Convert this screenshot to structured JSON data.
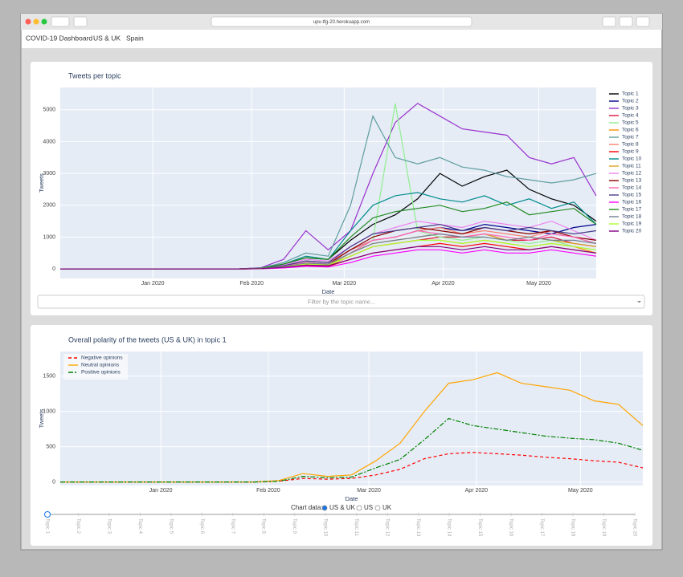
{
  "browser": {
    "url": "upv-tfg-20.herokuapp.com"
  },
  "nav": [
    "COVID-19 Dashboard",
    "US & UK",
    "Spain"
  ],
  "dropdown": {
    "placeholder": "Filter by the topic name..."
  },
  "controls": {
    "label": "Chart data:",
    "options": [
      "US & UK",
      "US",
      "UK"
    ],
    "selected": 0
  },
  "slider": {
    "labels": [
      "Topic 1",
      "Topic 2",
      "Topic 3",
      "Topic 4",
      "Topic 5",
      "Topic 6",
      "Topic 7",
      "Topic 8",
      "Topic 9",
      "Topic 10",
      "Topic 11",
      "Topic 12",
      "Topic 13",
      "Topic 14",
      "Topic 15",
      "Topic 16",
      "Topic 17",
      "Topic 18",
      "Topic 19",
      "Topic 20"
    ],
    "selected": 0
  },
  "chart_data": [
    {
      "type": "line",
      "title": "Tweets per topic",
      "x_label": "Date",
      "y_label": "Tweets",
      "legend": "right",
      "grid": true,
      "x": [
        "2019-12-03",
        "2019-12-10",
        "2019-12-17",
        "2019-12-24",
        "2019-12-31",
        "2020-01-07",
        "2020-01-14",
        "2020-01-21",
        "2020-01-28",
        "2020-02-04",
        "2020-02-11",
        "2020-02-18",
        "2020-02-25",
        "2020-03-03",
        "2020-03-10",
        "2020-03-17",
        "2020-03-24",
        "2020-03-31",
        "2020-04-07",
        "2020-04-14",
        "2020-04-21",
        "2020-04-28",
        "2020-05-05",
        "2020-05-12",
        "2020-05-19"
      ],
      "xlim": [
        "2019-12-03",
        "2020-05-19"
      ],
      "xticks": [
        {
          "value": "2020-01-01",
          "label": "Jan 2020"
        },
        {
          "value": "2020-02-01",
          "label": "Feb 2020"
        },
        {
          "value": "2020-03-01",
          "label": "Mar 2020"
        },
        {
          "value": "2020-04-01",
          "label": "Apr 2020"
        },
        {
          "value": "2020-05-01",
          "label": "May 2020"
        }
      ],
      "ylim": [
        -300,
        5700
      ],
      "yticks": [
        0,
        1000,
        2000,
        3000,
        4000,
        5000
      ],
      "series": [
        {
          "name": "Topic 1",
          "color": "#000000",
          "values": [
            0,
            0,
            0,
            0,
            0,
            0,
            0,
            0,
            0,
            30,
            150,
            350,
            300,
            900,
            1400,
            1700,
            2200,
            3000,
            2600,
            2900,
            3100,
            2500,
            2200,
            2000,
            1500
          ]
        },
        {
          "name": "Topic 2",
          "color": "#00008b",
          "values": [
            0,
            0,
            0,
            0,
            0,
            0,
            0,
            0,
            0,
            20,
            100,
            250,
            200,
            600,
            900,
            1000,
            1200,
            1300,
            1200,
            1400,
            1300,
            1200,
            1100,
            1300,
            1400
          ]
        },
        {
          "name": "Topic 3",
          "color": "#9932cc",
          "values": [
            0,
            0,
            0,
            0,
            0,
            0,
            0,
            0,
            0,
            40,
            300,
            1200,
            600,
            1200,
            3000,
            4600,
            5200,
            4800,
            4400,
            4300,
            4200,
            3500,
            3300,
            3500,
            2300
          ]
        },
        {
          "name": "Topic 4",
          "color": "#dc143c",
          "values": [
            0,
            0,
            0,
            0,
            0,
            0,
            0,
            0,
            0,
            10,
            60,
            150,
            120,
            400,
            700,
            800,
            900,
            1000,
            1000,
            1100,
            900,
            900,
            1000,
            800,
            700
          ]
        },
        {
          "name": "Topic 5",
          "color": "#90ee90",
          "values": [
            0,
            0,
            0,
            0,
            0,
            0,
            0,
            0,
            0,
            10,
            50,
            150,
            100,
            500,
            900,
            5200,
            1200,
            1000,
            900,
            1000,
            900,
            800,
            900,
            700,
            600
          ]
        },
        {
          "name": "Topic 6",
          "color": "#ff8c00",
          "values": [
            0,
            0,
            0,
            0,
            0,
            0,
            0,
            0,
            0,
            10,
            50,
            120,
            100,
            400,
            700,
            800,
            900,
            900,
            800,
            900,
            800,
            700,
            800,
            700,
            500
          ]
        },
        {
          "name": "Topic 7",
          "color": "#5f9ea0",
          "values": [
            0,
            0,
            0,
            0,
            0,
            0,
            0,
            0,
            0,
            30,
            200,
            500,
            400,
            2000,
            4800,
            3500,
            3300,
            3500,
            3200,
            3100,
            2900,
            2800,
            2700,
            2800,
            3000
          ]
        },
        {
          "name": "Topic 8",
          "color": "#fa8072",
          "values": [
            0,
            0,
            0,
            0,
            0,
            0,
            0,
            0,
            0,
            20,
            100,
            250,
            200,
            600,
            900,
            1000,
            1200,
            1300,
            1100,
            1200,
            1100,
            1000,
            1200,
            1000,
            800
          ]
        },
        {
          "name": "Topic 9",
          "color": "#ff0000",
          "values": [
            0,
            0,
            0,
            0,
            0,
            0,
            0,
            0,
            0,
            10,
            40,
            100,
            80,
            300,
            500,
            600,
            700,
            800,
            700,
            800,
            700,
            600,
            700,
            600,
            500
          ]
        },
        {
          "name": "Topic 10",
          "color": "#008b8b",
          "values": [
            0,
            0,
            0,
            0,
            0,
            0,
            0,
            0,
            0,
            20,
            150,
            400,
            300,
            1200,
            2000,
            2300,
            2400,
            2200,
            2100,
            2300,
            2000,
            2200,
            1900,
            2100,
            1400
          ]
        },
        {
          "name": "Topic 11",
          "color": "#daa520",
          "values": [
            0,
            0,
            0,
            0,
            0,
            0,
            0,
            0,
            0,
            10,
            60,
            150,
            120,
            500,
            800,
            900,
            1000,
            1100,
            1000,
            1100,
            900,
            1000,
            900,
            800,
            700
          ]
        },
        {
          "name": "Topic 12",
          "color": "#ee82ee",
          "values": [
            0,
            0,
            0,
            0,
            0,
            0,
            0,
            0,
            0,
            20,
            120,
            300,
            250,
            700,
            1100,
            1300,
            1500,
            1400,
            1300,
            1500,
            1400,
            1300,
            1500,
            1200,
            900
          ]
        },
        {
          "name": "Topic 13",
          "color": "#8b0000",
          "values": [
            0,
            0,
            0,
            0,
            0,
            0,
            0,
            0,
            0,
            15,
            80,
            200,
            150,
            600,
            1000,
            1200,
            1300,
            1200,
            1100,
            1300,
            1200,
            1100,
            1200,
            1000,
            900
          ]
        },
        {
          "name": "Topic 14",
          "color": "#ff69b4",
          "values": [
            0,
            0,
            0,
            0,
            0,
            0,
            0,
            0,
            0,
            15,
            80,
            200,
            150,
            500,
            900,
            1000,
            1200,
            1100,
            1000,
            1100,
            1000,
            900,
            1100,
            1000,
            800
          ]
        },
        {
          "name": "Topic 15",
          "color": "#483d8b",
          "values": [
            0,
            0,
            0,
            0,
            0,
            0,
            0,
            0,
            0,
            20,
            100,
            250,
            200,
            700,
            1100,
            1200,
            1300,
            1400,
            1200,
            1300,
            1200,
            1300,
            1200,
            1100,
            1200
          ]
        },
        {
          "name": "Topic 16",
          "color": "#ff00ff",
          "values": [
            0,
            0,
            0,
            0,
            0,
            0,
            0,
            0,
            0,
            5,
            30,
            80,
            60,
            200,
            400,
            500,
            600,
            600,
            500,
            600,
            500,
            500,
            600,
            500,
            400
          ]
        },
        {
          "name": "Topic 17",
          "color": "#228b22",
          "values": [
            0,
            0,
            0,
            0,
            0,
            0,
            0,
            0,
            0,
            20,
            150,
            350,
            300,
            1000,
            1600,
            1800,
            1900,
            2000,
            1800,
            1900,
            2100,
            1700,
            1800,
            1900,
            1400
          ]
        },
        {
          "name": "Topic 18",
          "color": "#708090",
          "values": [
            0,
            0,
            0,
            0,
            0,
            0,
            0,
            0,
            0,
            10,
            70,
            180,
            150,
            500,
            800,
            900,
            1000,
            1100,
            1000,
            1000,
            900,
            1000,
            900,
            900,
            800
          ]
        },
        {
          "name": "Topic 19",
          "color": "#adff2f",
          "values": [
            0,
            0,
            0,
            0,
            0,
            0,
            0,
            0,
            0,
            10,
            60,
            150,
            120,
            400,
            700,
            800,
            900,
            900,
            800,
            900,
            800,
            700,
            800,
            700,
            600
          ]
        },
        {
          "name": "Topic 20",
          "color": "#800080",
          "values": [
            0,
            0,
            0,
            0,
            0,
            0,
            0,
            0,
            0,
            10,
            50,
            120,
            100,
            300,
            500,
            600,
            700,
            700,
            600,
            700,
            600,
            600,
            700,
            600,
            500
          ]
        }
      ]
    },
    {
      "type": "line",
      "title": "Overall polarity of the tweets (US & UK) in topic 1",
      "x_label": "Date",
      "y_label": "Tweets",
      "legend": "top-left",
      "grid": true,
      "x": [
        "2019-12-03",
        "2019-12-10",
        "2019-12-17",
        "2019-12-24",
        "2019-12-31",
        "2020-01-07",
        "2020-01-14",
        "2020-01-21",
        "2020-01-28",
        "2020-02-04",
        "2020-02-11",
        "2020-02-18",
        "2020-02-25",
        "2020-03-03",
        "2020-03-10",
        "2020-03-17",
        "2020-03-24",
        "2020-03-31",
        "2020-04-07",
        "2020-04-14",
        "2020-04-21",
        "2020-04-28",
        "2020-05-05",
        "2020-05-12",
        "2020-05-19"
      ],
      "xlim": [
        "2019-12-03",
        "2020-05-19"
      ],
      "xticks": [
        {
          "value": "2020-01-01",
          "label": "Jan 2020"
        },
        {
          "value": "2020-02-01",
          "label": "Feb 2020"
        },
        {
          "value": "2020-03-01",
          "label": "Mar 2020"
        },
        {
          "value": "2020-04-01",
          "label": "Apr 2020"
        },
        {
          "value": "2020-05-01",
          "label": "May 2020"
        }
      ],
      "ylim": [
        -50,
        1850
      ],
      "yticks": [
        0,
        500,
        1000,
        1500
      ],
      "series": [
        {
          "name": "Negative opinions",
          "color": "#ff0000",
          "dash": "dash",
          "values": [
            0,
            0,
            0,
            0,
            0,
            0,
            0,
            0,
            0,
            10,
            50,
            40,
            50,
            100,
            180,
            330,
            400,
            420,
            400,
            380,
            350,
            330,
            300,
            280,
            200
          ]
        },
        {
          "name": "Neutral opinions",
          "color": "#ffa500",
          "dash": "solid",
          "values": [
            0,
            0,
            0,
            0,
            0,
            0,
            0,
            0,
            0,
            20,
            120,
            80,
            100,
            300,
            550,
            1000,
            1400,
            1450,
            1550,
            1400,
            1350,
            1300,
            1150,
            1100,
            800
          ]
        },
        {
          "name": "Positive opinions",
          "color": "#008000",
          "dash": "dashdot",
          "values": [
            0,
            0,
            0,
            0,
            0,
            0,
            0,
            0,
            0,
            10,
            80,
            60,
            70,
            200,
            320,
            600,
            900,
            800,
            750,
            700,
            650,
            620,
            600,
            550,
            450
          ]
        }
      ]
    }
  ]
}
